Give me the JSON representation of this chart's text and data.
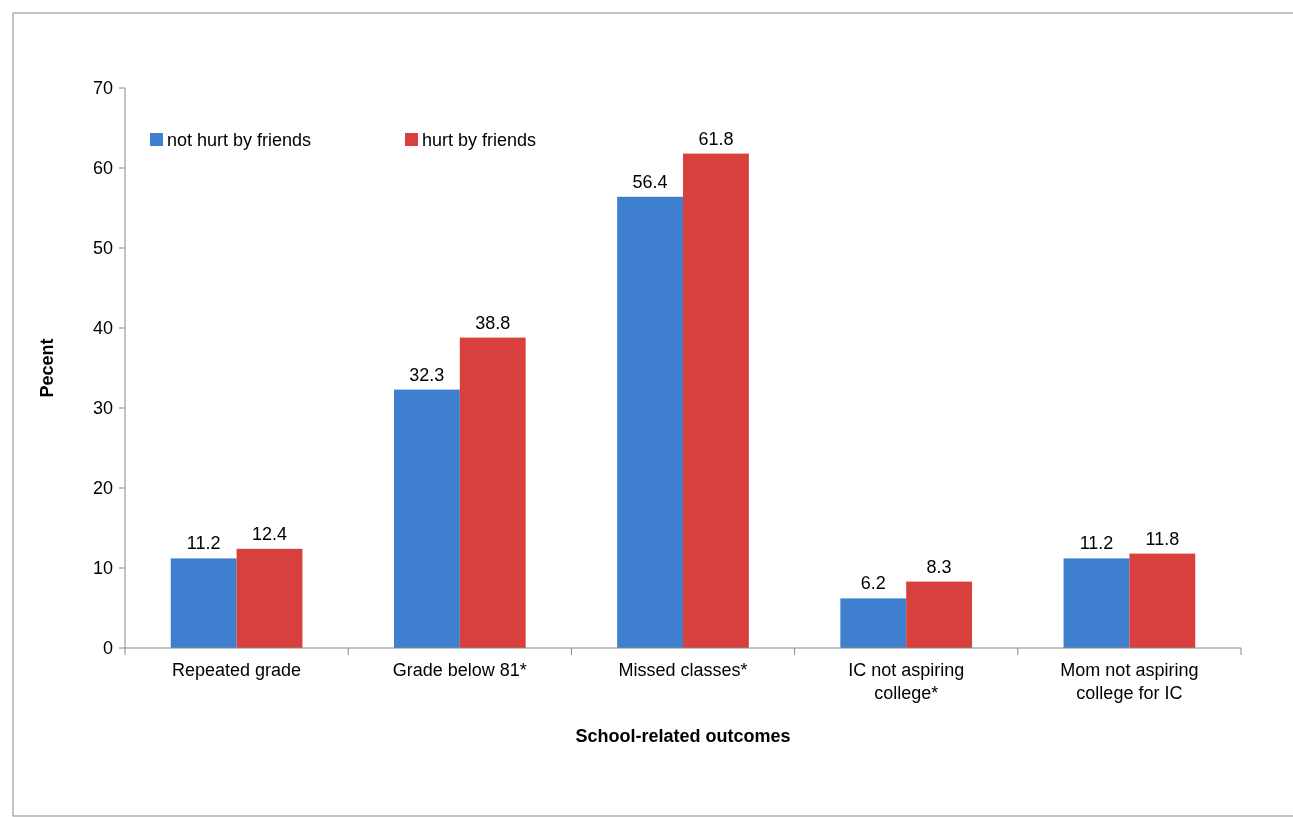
{
  "chart_data": {
    "type": "bar",
    "xlabel": "School-related outcomes",
    "ylabel": "Pecent",
    "categories": [
      "Repeated grade",
      "Grade below 81*",
      "Missed classes*",
      "IC not aspiring college*",
      "Mom not aspiring college for IC"
    ],
    "series": [
      {
        "name": "not hurt by friends",
        "color": "#3f7fcf",
        "values": [
          11.2,
          32.3,
          56.4,
          6.2,
          11.2
        ]
      },
      {
        "name": "hurt by friends",
        "color": "#d8403e",
        "values": [
          12.4,
          38.8,
          61.8,
          8.3,
          11.8
        ]
      }
    ],
    "ylim": [
      0,
      70
    ],
    "yticks": [
      0,
      10,
      20,
      30,
      40,
      50,
      60,
      70
    ],
    "data_labels": true,
    "legend": "top left",
    "grid": false
  }
}
